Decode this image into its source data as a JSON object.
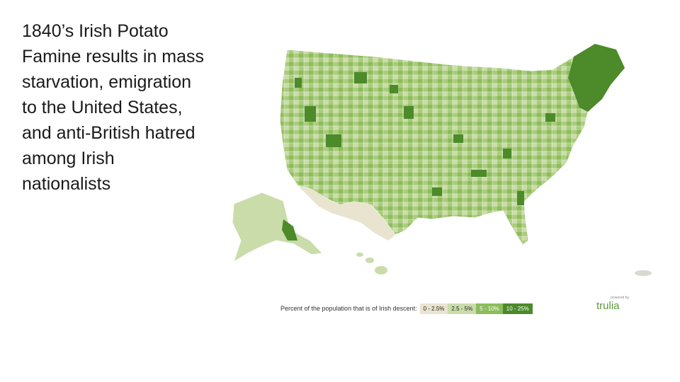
{
  "slide": {
    "lines": [
      "1840’s  Irish Potato",
      "Famine results in mass",
      "starvation, emigration",
      "to the United States,",
      "and anti-British hatred",
      "among Irish",
      "nationalists"
    ]
  },
  "map": {
    "legend_title": "Percent of the population that is of Irish descent:",
    "legend": [
      {
        "label": "0 - 2.5%",
        "color": "#e8e4cf"
      },
      {
        "label": "2.5 - 5%",
        "color": "#c9dcaa"
      },
      {
        "label": "5 - 10%",
        "color": "#8dbc5c"
      },
      {
        "label": "10 - 25%",
        "color": "#4c8a2a"
      }
    ],
    "brand": {
      "powered": "powered by",
      "name": "trulia"
    }
  }
}
